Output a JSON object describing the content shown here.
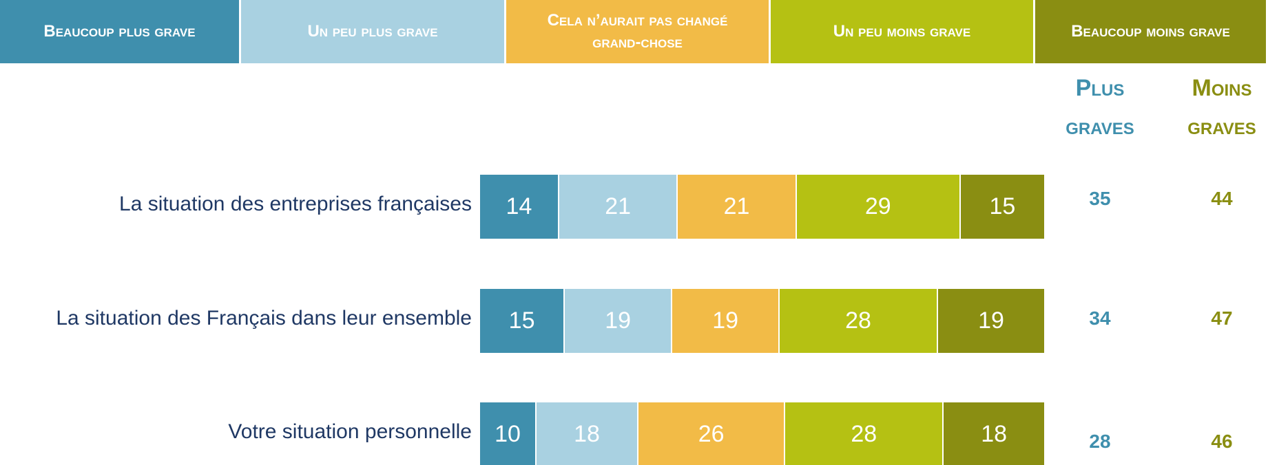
{
  "chart_data": {
    "type": "stacked-bar",
    "orientation": "horizontal",
    "categories": [
      "La situation des entreprises françaises",
      "La situation des Français dans leur ensemble",
      "Votre situation personnelle"
    ],
    "series": [
      {
        "name": "Beaucoup plus grave",
        "color": "#3f8fad",
        "values": [
          14,
          15,
          10
        ]
      },
      {
        "name": "Un peu plus grave",
        "color": "#a9d1e1",
        "values": [
          21,
          19,
          18
        ]
      },
      {
        "name": "Cela n’aurait pas changé grand-chose",
        "color": "#f2bb47",
        "values": [
          21,
          19,
          26
        ]
      },
      {
        "name": "Un peu moins grave",
        "color": "#b5c113",
        "values": [
          29,
          28,
          28
        ]
      },
      {
        "name": "Beaucoup moins grave",
        "color": "#8a8e12",
        "values": [
          15,
          19,
          18
        ]
      }
    ],
    "xlim": [
      0,
      100
    ],
    "summary": [
      {
        "name": "Plus graves",
        "color": "#3f8fad",
        "values": [
          35,
          34,
          28
        ]
      },
      {
        "name": "Moins graves",
        "color": "#8a8e12",
        "values": [
          44,
          47,
          46
        ]
      }
    ]
  }
}
